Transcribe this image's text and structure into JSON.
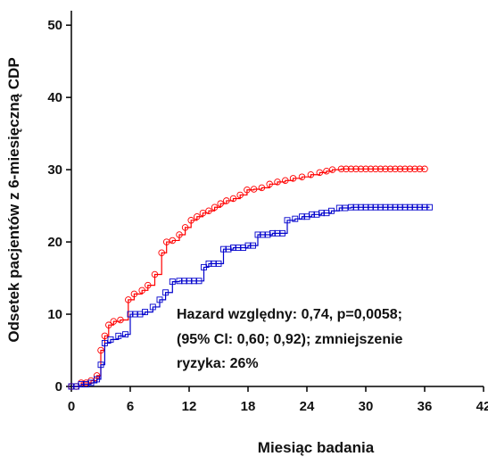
{
  "chart_data": {
    "type": "line",
    "xlabel": "Miesiąc badania",
    "ylabel": "Odsetek pacjentów z 6-miesięczną CDP",
    "xlim": [
      0,
      42
    ],
    "ylim": [
      0,
      52
    ],
    "x_ticks": [
      0,
      6,
      12,
      18,
      24,
      30,
      36,
      42
    ],
    "y_ticks": [
      0,
      10,
      20,
      30,
      40,
      50
    ],
    "x_tick_labels": [
      "0",
      "6",
      "12",
      "18",
      "24",
      "30",
      "36",
      "42"
    ],
    "y_tick_labels": [
      "0",
      "10",
      "20",
      "30",
      "40",
      "50"
    ],
    "grid": false,
    "legend": "none",
    "annotation": [
      "Hazard względny: 0,74, p=0,0058;",
      "(95% Cl: 0,60; 0,92); zmniejszenie",
      "ryzyka: 26%"
    ],
    "series": [
      {
        "color": "#ff0000",
        "marker": "circle",
        "step": true,
        "x": [
          0,
          1,
          2,
          2.6,
          3.0,
          3.4,
          3.8,
          4.3,
          5.0,
          5.8,
          6.4,
          7.2,
          7.8,
          8.5,
          9.2,
          9.7,
          10.3,
          11.0,
          11.6,
          12.2,
          12.8,
          13.4,
          14.0,
          14.6,
          15.2,
          15.8,
          16.5,
          17.2,
          17.9,
          18.6,
          19.4,
          20.2,
          21.0,
          21.8,
          22.6,
          23.5,
          24.4,
          25.3,
          26.0,
          26.6,
          27.5,
          29.0,
          31.0,
          33.0,
          35.0,
          36.0
        ],
        "y": [
          0,
          0.5,
          0.8,
          1.5,
          5.0,
          7.0,
          8.5,
          9.0,
          9.2,
          12.0,
          12.8,
          13.3,
          14.0,
          15.5,
          18.5,
          20.0,
          20.2,
          21.0,
          22.0,
          23.0,
          23.5,
          24.0,
          24.3,
          24.8,
          25.3,
          25.7,
          26.0,
          26.5,
          27.2,
          27.3,
          27.5,
          28.0,
          28.3,
          28.5,
          28.8,
          29.0,
          29.3,
          29.6,
          29.8,
          30.0,
          30.1,
          30.1,
          30.1,
          30.1,
          30.1,
          30.1
        ]
      },
      {
        "color": "#0000cc",
        "marker": "square",
        "step": true,
        "x": [
          0,
          1,
          2,
          2.6,
          3.0,
          3.4,
          4.0,
          4.8,
          5.5,
          6.0,
          7.5,
          8.3,
          9.0,
          9.6,
          10.3,
          11.0,
          12.5,
          13.5,
          14.0,
          15.5,
          16.5,
          18.0,
          19.0,
          20.5,
          22.0,
          22.8,
          23.5,
          24.5,
          25.5,
          26.5,
          27.3,
          28.5,
          30.0,
          32.0,
          34.0,
          36.5
        ],
        "y": [
          0,
          0.3,
          0.5,
          1.0,
          3.0,
          6.0,
          6.5,
          7.0,
          7.2,
          10.0,
          10.3,
          11.0,
          12.0,
          13.0,
          14.5,
          14.6,
          14.6,
          16.5,
          17.0,
          19.0,
          19.2,
          19.5,
          21.0,
          21.2,
          23.0,
          23.2,
          23.5,
          23.8,
          24.0,
          24.3,
          24.7,
          24.8,
          24.8,
          24.8,
          24.8,
          24.8
        ]
      }
    ]
  }
}
